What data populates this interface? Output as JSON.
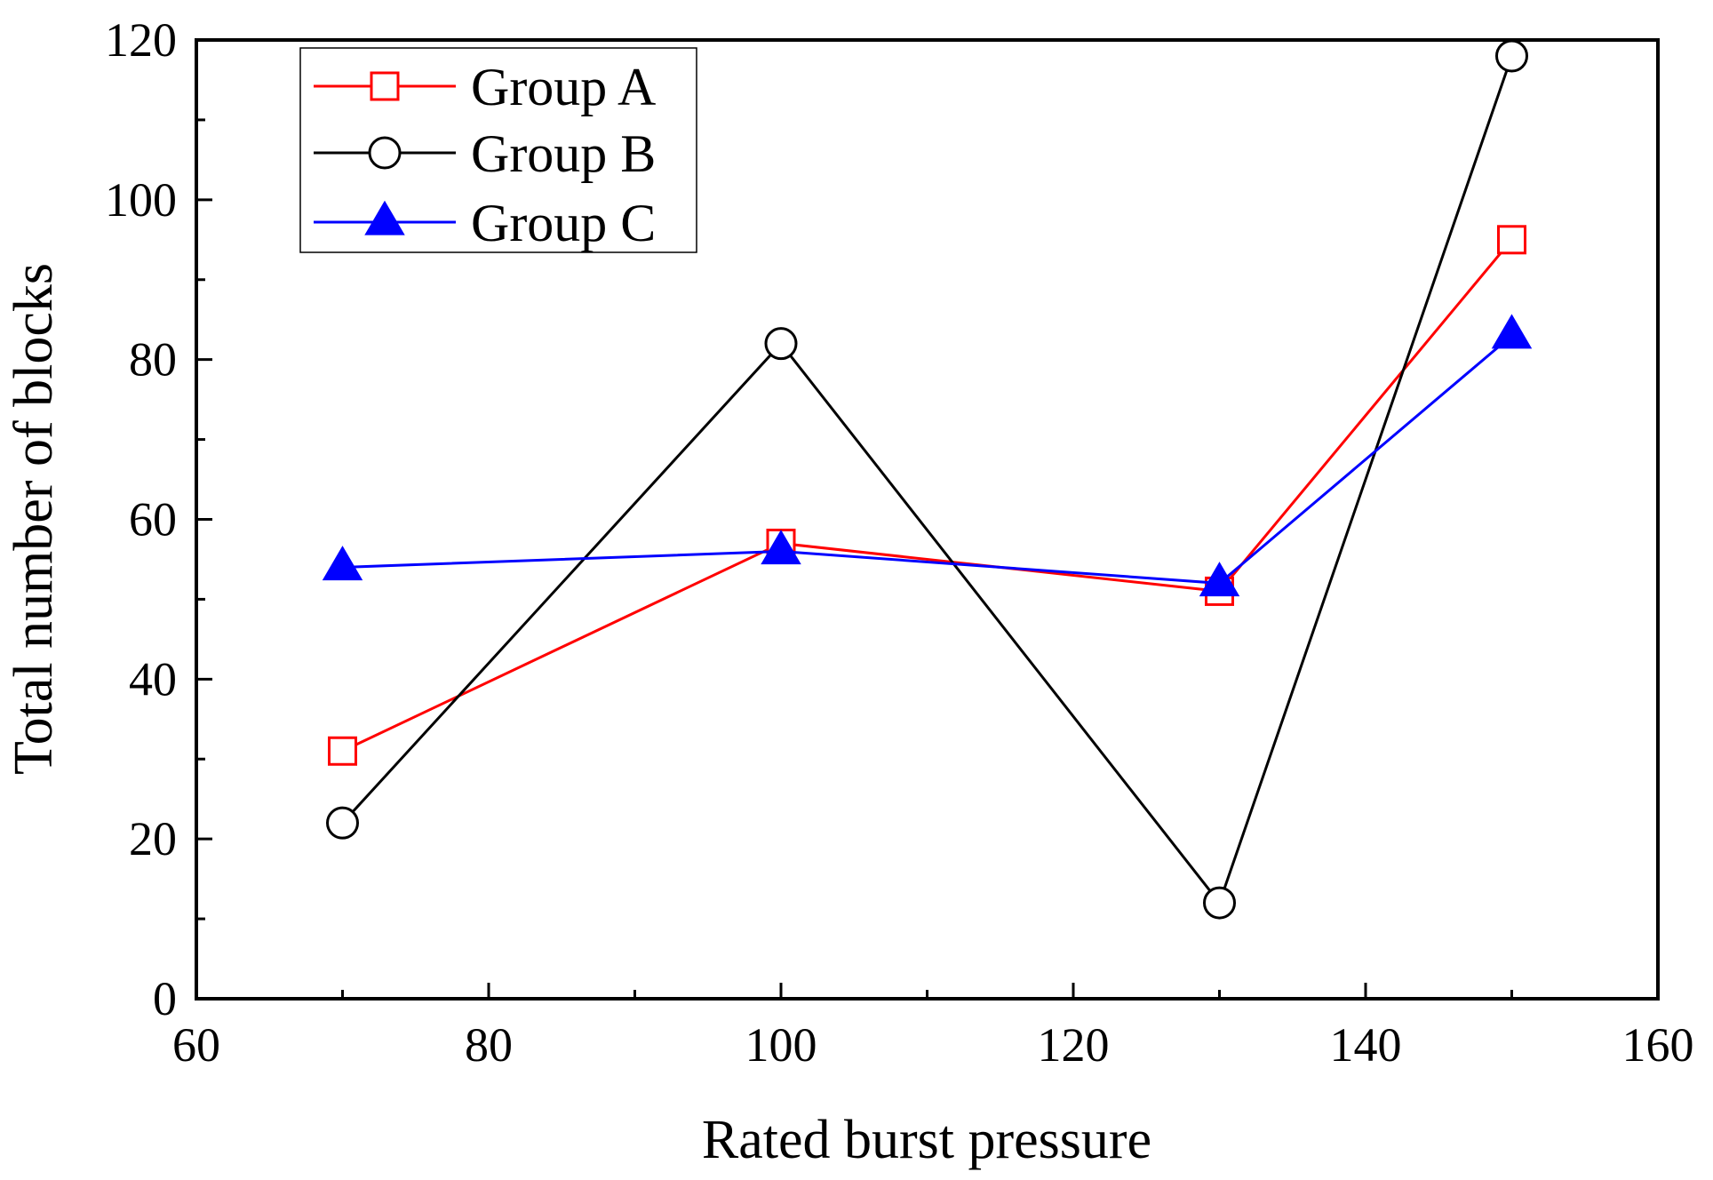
{
  "chart_data": {
    "type": "line",
    "title": "",
    "xlabel": "Rated burst pressure",
    "ylabel": "Total number of blocks",
    "xlim": [
      60,
      160
    ],
    "ylim": [
      0,
      120
    ],
    "xticks": [
      60,
      80,
      100,
      120,
      140,
      160
    ],
    "yticks": [
      0,
      20,
      40,
      60,
      80,
      100,
      120
    ],
    "x_minor_step": 10,
    "y_minor_step": 10,
    "grid": false,
    "legend_position": "top-left",
    "x": [
      70,
      100,
      130,
      150
    ],
    "series": [
      {
        "name": "Group A",
        "values": [
          31,
          57,
          51,
          95
        ],
        "color": "#ff0000",
        "marker": "square-open"
      },
      {
        "name": "Group B",
        "values": [
          22,
          82,
          12,
          118
        ],
        "color": "#000000",
        "marker": "circle-open"
      },
      {
        "name": "Group C",
        "values": [
          54,
          56,
          52,
          83
        ],
        "color": "#0000ff",
        "marker": "triangle-filled"
      }
    ]
  }
}
